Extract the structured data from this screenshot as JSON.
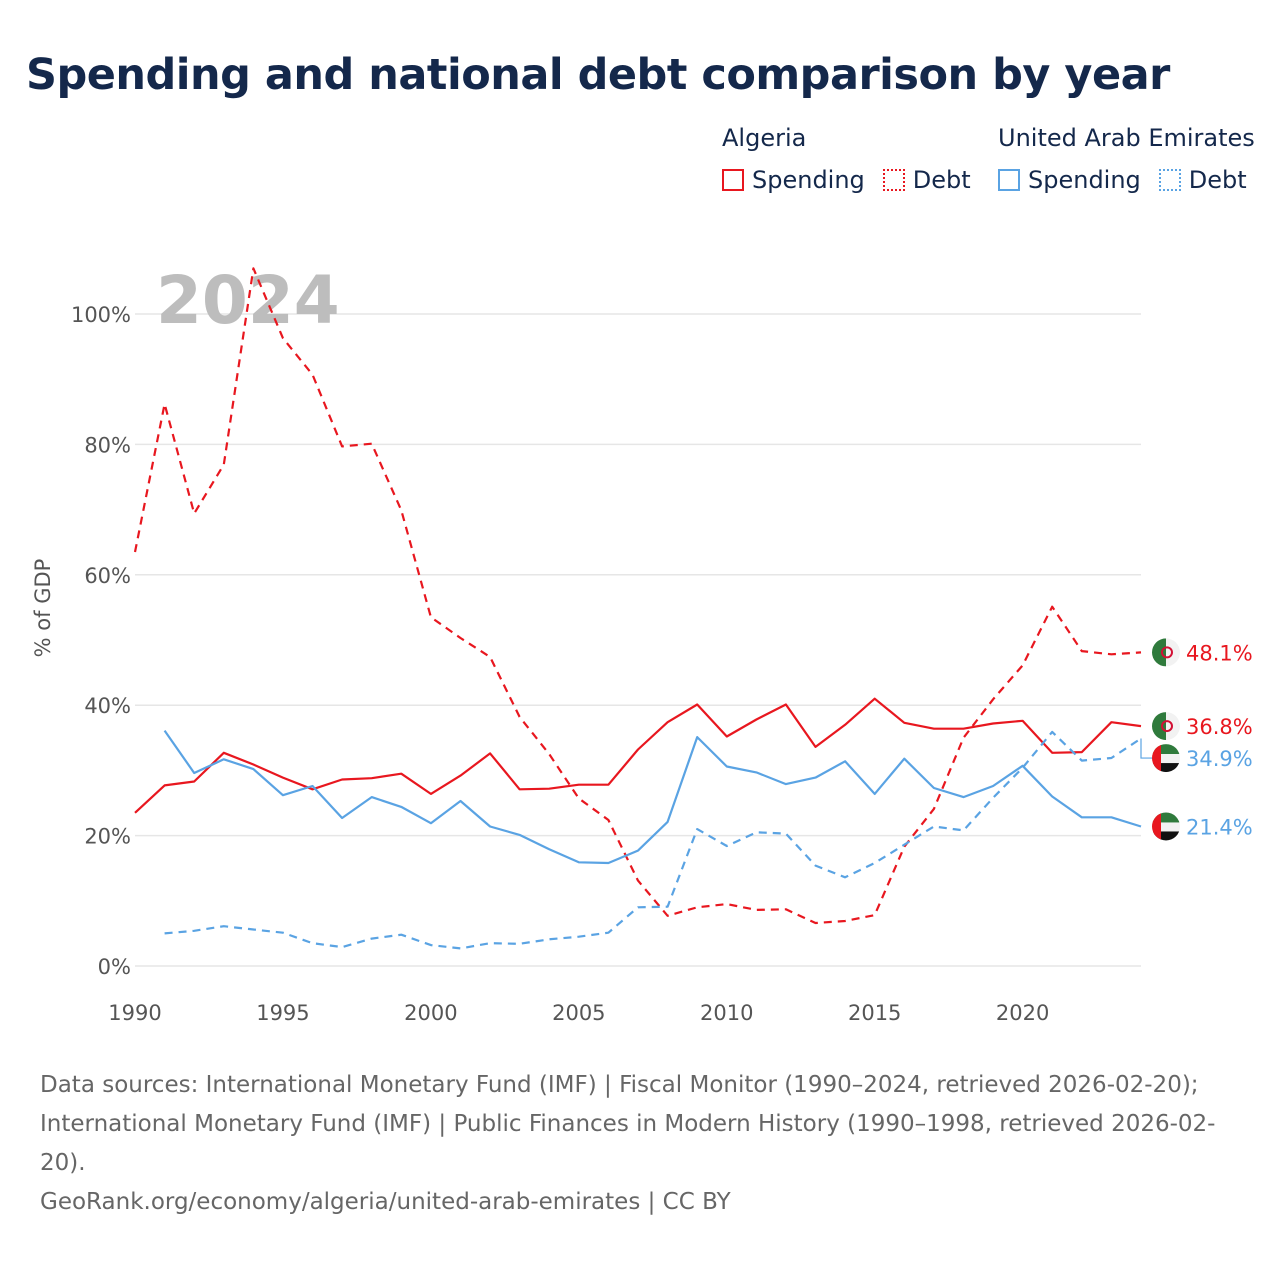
{
  "title": "Spending and national debt comparison by year",
  "legend": {
    "groups": [
      {
        "country": "Algeria",
        "spending_label": "Spending",
        "debt_label": "Debt",
        "color": "#e8171f"
      },
      {
        "country": "United Arab Emirates",
        "spending_label": "Spending",
        "debt_label": "Debt",
        "color": "#5aa3e3"
      }
    ]
  },
  "year_watermark": "2024",
  "footer": {
    "sources": "Data sources: International Monetary Fund (IMF) | Fiscal Monitor (1990–2024, retrieved 2026-02-20); International Monetary Fund (IMF) | Public Finances in Modern History (1990–1998, retrieved 2026-02-20).",
    "credit": "GeoRank.org/economy/algeria/united-arab-emirates | CC BY"
  },
  "chart_data": {
    "type": "line",
    "title": "Spending and national debt comparison by year",
    "xlabel": "",
    "ylabel": "% of GDP",
    "xlim": [
      1990,
      2024
    ],
    "ylim": [
      0,
      100
    ],
    "x_ticks": [
      1990,
      1995,
      2000,
      2005,
      2010,
      2015,
      2020
    ],
    "y_ticks": [
      {
        "value": 0,
        "label": "0%"
      },
      {
        "value": 20,
        "label": "20%"
      },
      {
        "value": 40,
        "label": "40%"
      },
      {
        "value": 60,
        "label": "60%"
      },
      {
        "value": 80,
        "label": "80%"
      },
      {
        "value": 100,
        "label": "100%"
      }
    ],
    "grid": true,
    "series": [
      {
        "name": "Algeria Debt",
        "country": "Algeria",
        "kind": "debt",
        "color": "#e8171f",
        "dash": "8,6",
        "flag": "algeria",
        "end_label": "48.1%",
        "x": [
          1990,
          1991,
          1992,
          1993,
          1994,
          1995,
          1996,
          1997,
          1998,
          1999,
          2000,
          2001,
          2002,
          2003,
          2004,
          2005,
          2006,
          2007,
          2008,
          2009,
          2010,
          2011,
          2012,
          2013,
          2014,
          2015,
          2016,
          2017,
          2018,
          2019,
          2020,
          2021,
          2022,
          2023,
          2024
        ],
        "values": [
          63.5,
          86.2,
          69.4,
          76.9,
          107.0,
          96.3,
          90.7,
          79.7,
          80.1,
          69.9,
          53.5,
          50.3,
          47.4,
          38.2,
          32.5,
          25.7,
          22.4,
          13.1,
          7.7,
          9.0,
          9.5,
          8.6,
          8.7,
          6.6,
          6.9,
          7.8,
          18.3,
          24.1,
          35.0,
          40.9,
          46.1,
          55.1,
          48.3,
          47.8,
          48.1
        ]
      },
      {
        "name": "Algeria Spending",
        "country": "Algeria",
        "kind": "spending",
        "color": "#e8171f",
        "dash": "",
        "flag": "algeria",
        "end_label": "36.8%",
        "x": [
          1990,
          1991,
          1992,
          1993,
          1994,
          1995,
          1996,
          1997,
          1998,
          1999,
          2000,
          2001,
          2002,
          2003,
          2004,
          2005,
          2006,
          2007,
          2008,
          2009,
          2010,
          2011,
          2012,
          2013,
          2014,
          2015,
          2016,
          2017,
          2018,
          2019,
          2020,
          2021,
          2022,
          2023,
          2024
        ],
        "values": [
          23.5,
          27.7,
          28.3,
          32.7,
          30.9,
          28.9,
          27.1,
          28.6,
          28.8,
          29.5,
          26.4,
          29.2,
          32.6,
          27.1,
          27.2,
          27.8,
          27.8,
          33.2,
          37.4,
          40.1,
          35.2,
          37.8,
          40.1,
          33.6,
          37.0,
          41.0,
          37.3,
          36.4,
          36.4,
          37.2,
          37.6,
          32.7,
          32.8,
          37.4,
          36.8
        ]
      },
      {
        "name": "United Arab Emirates Debt",
        "country": "United Arab Emirates",
        "kind": "debt",
        "color": "#5aa3e3",
        "dash": "8,6",
        "flag": "uae",
        "end_label": "34.9%",
        "x": [
          1991,
          1992,
          1993,
          1994,
          1995,
          1996,
          1997,
          1998,
          1999,
          2000,
          2001,
          2002,
          2003,
          2004,
          2005,
          2006,
          2007,
          2008,
          2009,
          2010,
          2011,
          2012,
          2013,
          2014,
          2015,
          2016,
          2017,
          2018,
          2019,
          2020,
          2021,
          2022,
          2023,
          2024
        ],
        "values": [
          5.0,
          5.4,
          6.1,
          5.6,
          5.1,
          3.5,
          2.9,
          4.2,
          4.8,
          3.2,
          2.7,
          3.5,
          3.4,
          4.1,
          4.5,
          5.1,
          9.0,
          9.1,
          21.0,
          18.4,
          20.5,
          20.3,
          15.4,
          13.6,
          15.8,
          18.6,
          21.4,
          20.8,
          25.8,
          30.4,
          35.9,
          31.5,
          31.9,
          34.9
        ]
      },
      {
        "name": "United Arab Emirates Spending",
        "country": "United Arab Emirates",
        "kind": "spending",
        "color": "#5aa3e3",
        "dash": "",
        "flag": "uae",
        "end_label": "21.4%",
        "x": [
          1991,
          1992,
          1993,
          1994,
          1995,
          1996,
          1997,
          1998,
          1999,
          2000,
          2001,
          2002,
          2003,
          2004,
          2005,
          2006,
          2007,
          2008,
          2009,
          2010,
          2011,
          2012,
          2013,
          2014,
          2015,
          2016,
          2017,
          2018,
          2019,
          2020,
          2021,
          2022,
          2023,
          2024
        ],
        "values": [
          36.1,
          29.6,
          31.7,
          30.2,
          26.2,
          27.6,
          22.7,
          25.9,
          24.4,
          21.9,
          25.3,
          21.4,
          20.1,
          17.9,
          15.9,
          15.8,
          17.7,
          22.1,
          35.1,
          30.6,
          29.7,
          27.9,
          28.9,
          31.4,
          26.4,
          31.8,
          27.3,
          25.9,
          27.6,
          30.7,
          26.0,
          22.8,
          22.8,
          21.4
        ]
      }
    ]
  }
}
